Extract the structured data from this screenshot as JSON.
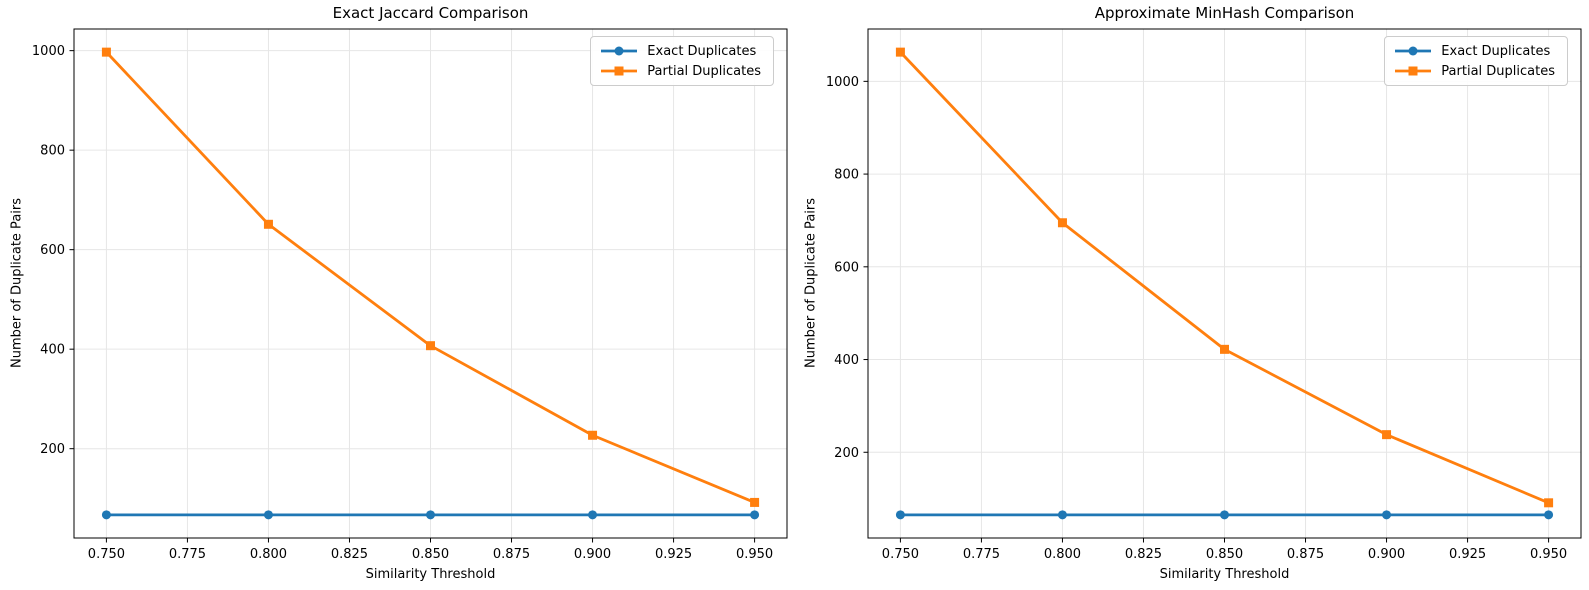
{
  "figure": {
    "background_color": "#ffffff",
    "grid_color": "#e6e6e6",
    "spine_color": "#000000",
    "series_colors": {
      "exact": "#1f77b4",
      "partial": "#ff7f0e"
    }
  },
  "chart_data": [
    {
      "type": "line",
      "title": "Exact Jaccard Comparison",
      "xlabel": "Similarity Threshold",
      "ylabel": "Number of Duplicate Pairs",
      "x": [
        0.75,
        0.8,
        0.85,
        0.9,
        0.95
      ],
      "x_tick_values": [
        0.75,
        0.775,
        0.8,
        0.825,
        0.85,
        0.875,
        0.9,
        0.925,
        0.95
      ],
      "x_tick_labels": [
        "0.750",
        "0.775",
        "0.800",
        "0.825",
        "0.850",
        "0.875",
        "0.900",
        "0.925",
        "0.950"
      ],
      "y_tick_values": [
        200,
        400,
        600,
        800,
        1000
      ],
      "y_tick_labels": [
        "200",
        "400",
        "600",
        "800",
        "1000"
      ],
      "grid": true,
      "legend_position": "upper right",
      "series": [
        {
          "name": "Exact Duplicates",
          "color": "#1f77b4",
          "marker": "circle",
          "values": [
            67,
            67,
            67,
            67,
            67
          ]
        },
        {
          "name": "Partial Duplicates",
          "color": "#ff7f0e",
          "marker": "square",
          "values": [
            997,
            651,
            407,
            227,
            92
          ]
        }
      ]
    },
    {
      "type": "line",
      "title": "Approximate MinHash Comparison",
      "xlabel": "Similarity Threshold",
      "ylabel": "Number of Duplicate Pairs",
      "x": [
        0.75,
        0.8,
        0.85,
        0.9,
        0.95
      ],
      "x_tick_values": [
        0.75,
        0.775,
        0.8,
        0.825,
        0.85,
        0.875,
        0.9,
        0.925,
        0.95
      ],
      "x_tick_labels": [
        "0.750",
        "0.775",
        "0.800",
        "0.825",
        "0.850",
        "0.875",
        "0.900",
        "0.925",
        "0.950"
      ],
      "y_tick_values": [
        200,
        400,
        600,
        800,
        1000
      ],
      "y_tick_labels": [
        "200",
        "400",
        "600",
        "800",
        "1000"
      ],
      "grid": true,
      "legend_position": "upper right",
      "series": [
        {
          "name": "Exact Duplicates",
          "color": "#1f77b4",
          "marker": "circle",
          "values": [
            65,
            65,
            65,
            65,
            65
          ]
        },
        {
          "name": "Partial Duplicates",
          "color": "#ff7f0e",
          "marker": "square",
          "values": [
            1063,
            695,
            422,
            238,
            91
          ]
        }
      ]
    }
  ]
}
